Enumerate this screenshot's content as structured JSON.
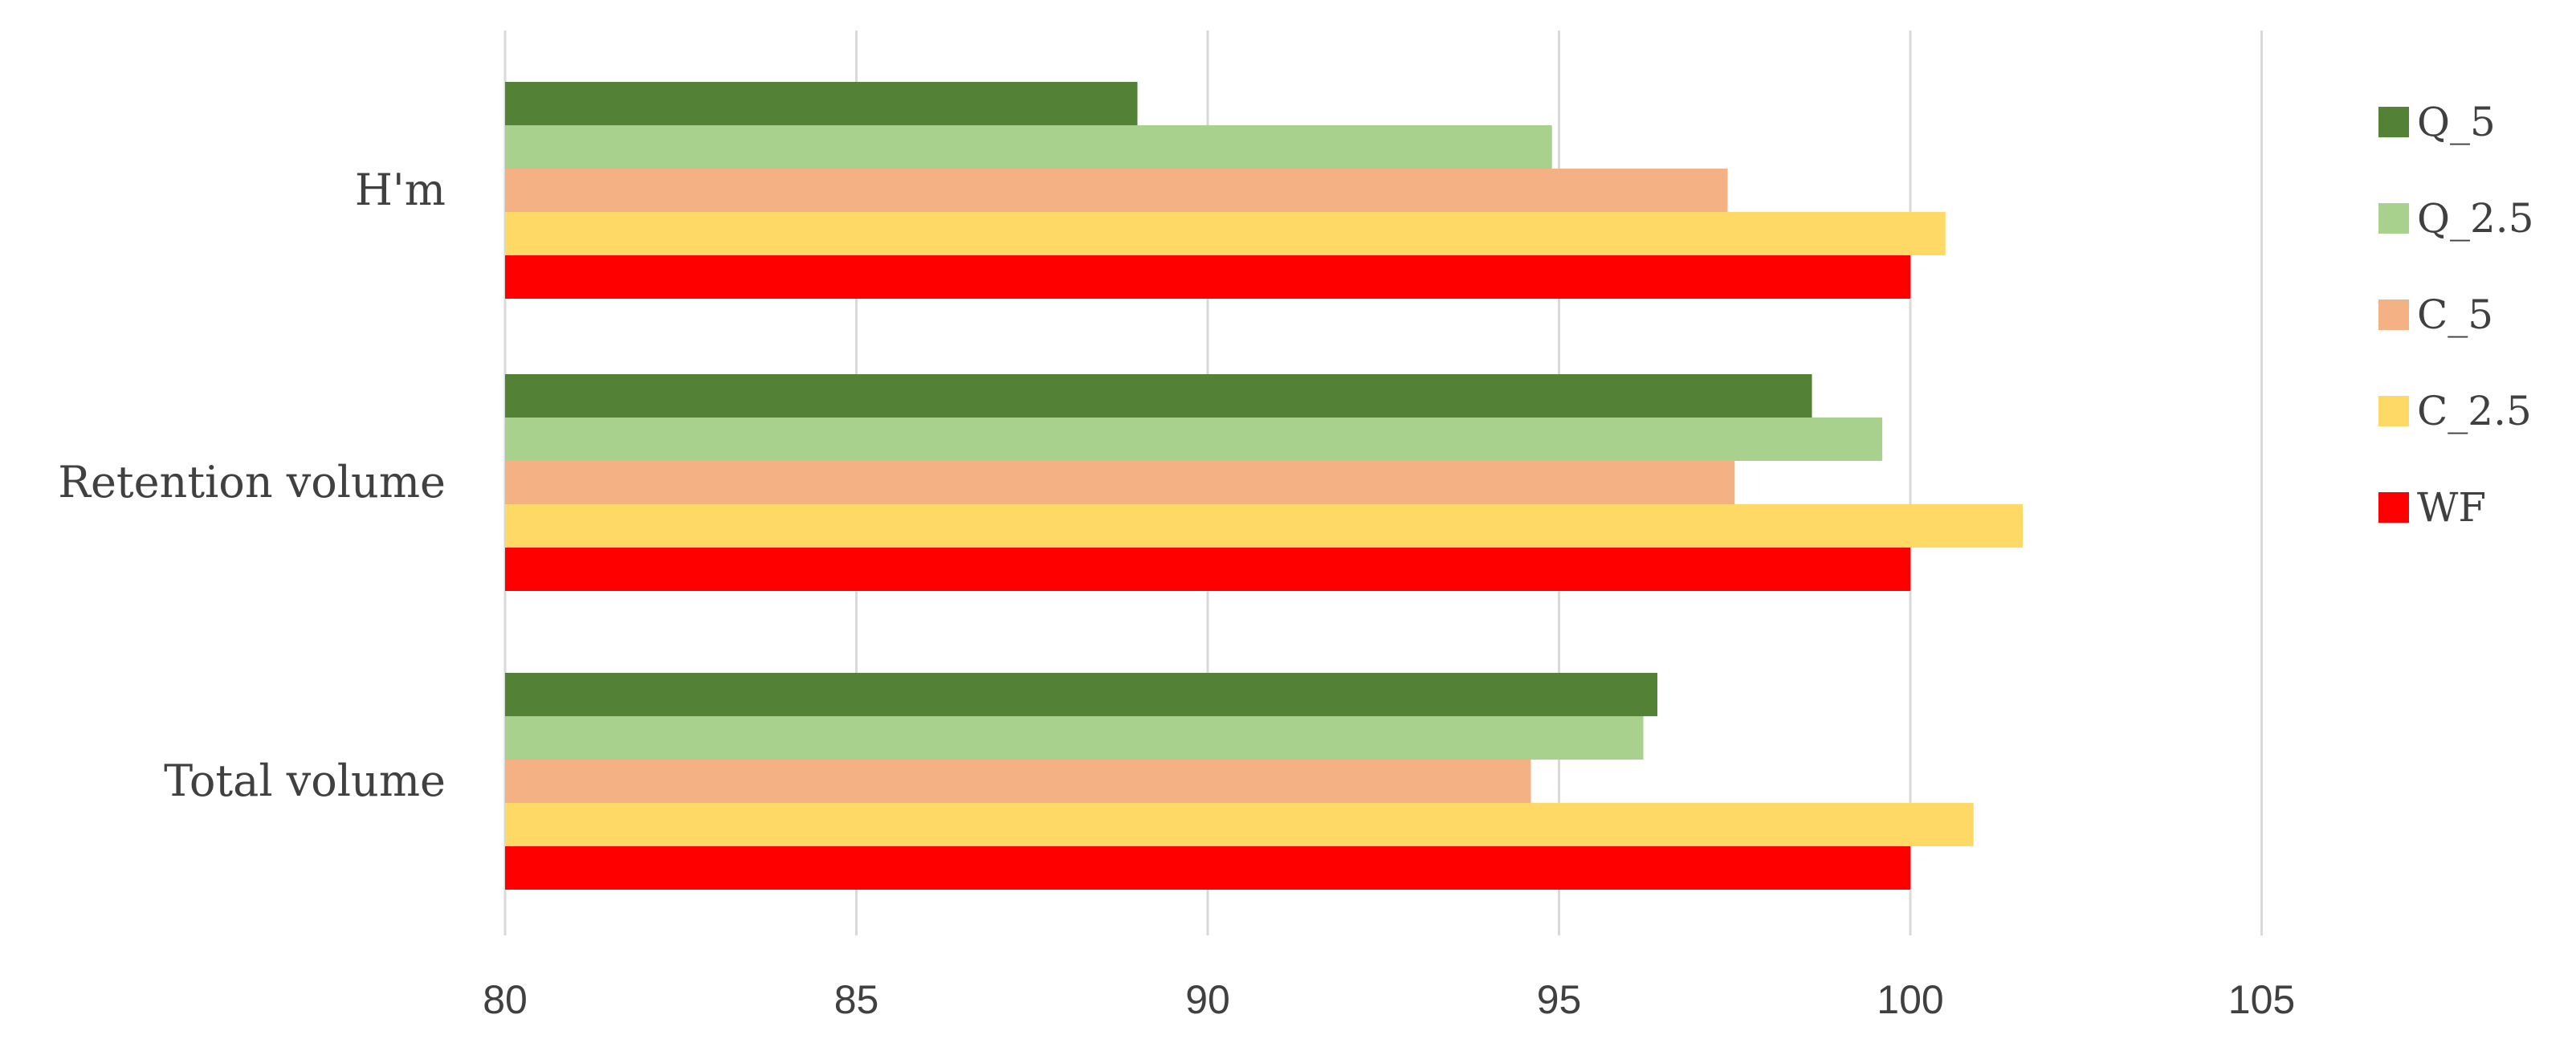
{
  "chart_data": {
    "type": "bar",
    "orientation": "horizontal",
    "categories": [
      "H'm",
      "Retention volume",
      "Total volume"
    ],
    "series": [
      {
        "name": "Q_5",
        "color": "#538135",
        "values": [
          89.0,
          98.6,
          96.4
        ]
      },
      {
        "name": "Q_2.5",
        "color": "#a9d18e",
        "values": [
          94.9,
          99.6,
          96.2
        ]
      },
      {
        "name": "C_5",
        "color": "#f4b183",
        "values": [
          97.4,
          97.5,
          94.6
        ]
      },
      {
        "name": "C_2.5",
        "color": "#ffd966",
        "values": [
          100.5,
          101.6,
          100.9
        ]
      },
      {
        "name": "WF",
        "color": "#ff0000",
        "values": [
          100.0,
          100.0,
          100.0
        ]
      }
    ],
    "xlim": [
      80,
      108
    ],
    "xticks": [
      80,
      85,
      90,
      95,
      100,
      105
    ],
    "grid": true,
    "legend_position": "right",
    "title": "",
    "xlabel": "",
    "ylabel": ""
  }
}
